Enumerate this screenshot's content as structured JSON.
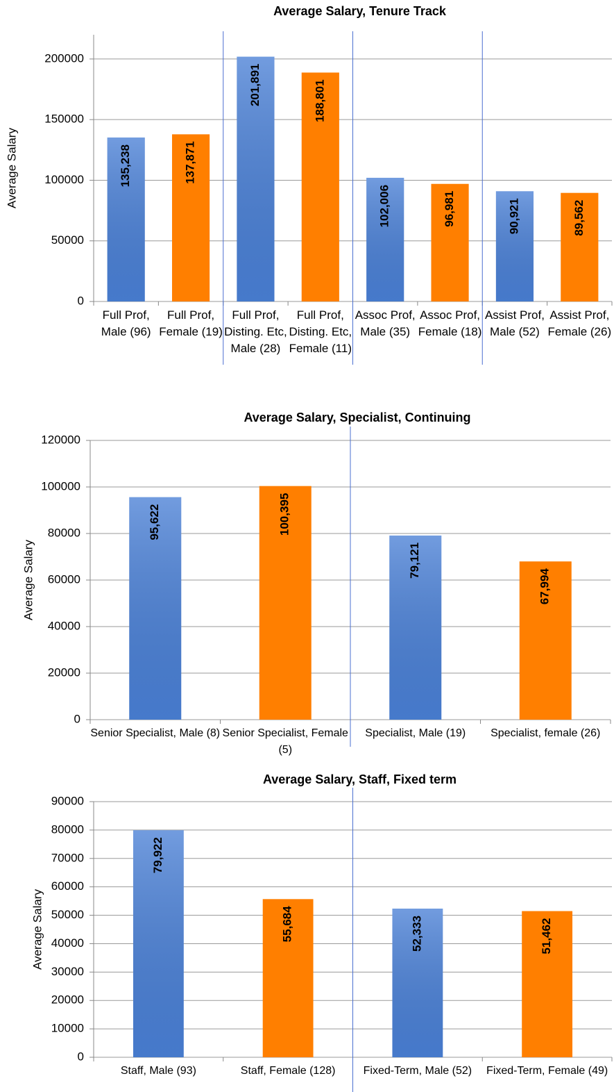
{
  "chart_data": [
    {
      "type": "bar",
      "title": "Average Salary, Tenure Track",
      "y_label": "Average Salary",
      "categories": [
        "Full Prof, Male (96)",
        "Full Prof, Female (19)",
        "Full Prof, Disting. Etc, Male (28)",
        "Full Prof, Disting. Etc, Female (11)",
        "Assoc Prof, Male (35)",
        "Assoc Prof, Female (18)",
        "Assist Prof, Male (52)",
        "Assist Prof, Female (26)"
      ],
      "values": [
        135238,
        137871,
        201891,
        188801,
        102006,
        96981,
        90921,
        89562
      ],
      "value_labels": [
        "135,238",
        "137,871",
        "201,891",
        "188,801",
        "102,006",
        "96,981",
        "90,921",
        "89,562"
      ],
      "colors": [
        "#4a80d6",
        "#ff7f00",
        "#4a80d6",
        "#ff7f00",
        "#4a80d6",
        "#ff7f00",
        "#4a80d6",
        "#ff7f00"
      ],
      "ylim": [
        0,
        220000
      ],
      "yticks": [
        0,
        50000,
        100000,
        150000,
        200000
      ],
      "grid": true
    },
    {
      "type": "bar",
      "title": "Average Salary, Specialist, Continuing",
      "y_label": "Average Salary",
      "categories": [
        "Senior Specialist, Male (8)",
        "Senior Specialist, Female (5)",
        "Specialist, Male (19)",
        "Specialist, female (26)"
      ],
      "values": [
        95622,
        100395,
        79121,
        67994
      ],
      "value_labels": [
        "95,622",
        "100,395",
        "79,121",
        "67,994"
      ],
      "colors": [
        "#4a80d6",
        "#ff7f00",
        "#4a80d6",
        "#ff7f00"
      ],
      "ylim": [
        0,
        120000
      ],
      "yticks": [
        0,
        20000,
        40000,
        60000,
        80000,
        100000,
        120000
      ],
      "grid": true
    },
    {
      "type": "bar",
      "title": "Average Salary, Staff, Fixed term",
      "y_label": "Average Salary",
      "categories": [
        "Staff, Male (93)",
        "Staff, Female (128)",
        "Fixed-Term, Male (52)",
        "Fixed-Term, Female (49)"
      ],
      "values": [
        79922,
        55684,
        52333,
        51462
      ],
      "value_labels": [
        "79,922",
        "55,684",
        "52,333",
        "51,462"
      ],
      "colors": [
        "#4a80d6",
        "#ff7f00",
        "#4a80d6",
        "#ff7f00"
      ],
      "ylim": [
        0,
        90000
      ],
      "yticks": [
        0,
        10000,
        20000,
        30000,
        40000,
        50000,
        60000,
        70000,
        80000,
        90000
      ],
      "grid": true
    }
  ]
}
